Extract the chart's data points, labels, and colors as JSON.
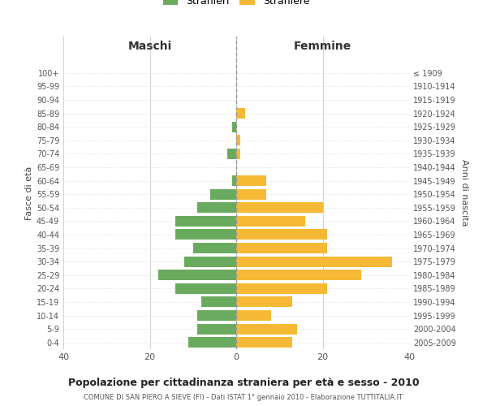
{
  "age_groups": [
    "0-4",
    "5-9",
    "10-14",
    "15-19",
    "20-24",
    "25-29",
    "30-34",
    "35-39",
    "40-44",
    "45-49",
    "50-54",
    "55-59",
    "60-64",
    "65-69",
    "70-74",
    "75-79",
    "80-84",
    "85-89",
    "90-94",
    "95-99",
    "100+"
  ],
  "birth_years": [
    "2005-2009",
    "2000-2004",
    "1995-1999",
    "1990-1994",
    "1985-1989",
    "1980-1984",
    "1975-1979",
    "1970-1974",
    "1965-1969",
    "1960-1964",
    "1955-1959",
    "1950-1954",
    "1945-1949",
    "1940-1944",
    "1935-1939",
    "1930-1934",
    "1925-1929",
    "1920-1924",
    "1915-1919",
    "1910-1914",
    "≤ 1909"
  ],
  "maschi": [
    11,
    9,
    9,
    8,
    14,
    18,
    12,
    10,
    14,
    14,
    9,
    6,
    1,
    0,
    2,
    0,
    1,
    0,
    0,
    0,
    0
  ],
  "femmine": [
    13,
    14,
    8,
    13,
    21,
    29,
    36,
    21,
    21,
    16,
    20,
    7,
    7,
    0,
    1,
    1,
    0,
    2,
    0,
    0,
    0
  ],
  "color_maschi": "#6aaa5f",
  "color_femmine": "#f5b935",
  "title": "Popolazione per cittadinanza straniera per età e sesso - 2010",
  "subtitle": "COMUNE DI SAN PIERO A SIEVE (FI) - Dati ISTAT 1° gennaio 2010 - Elaborazione TUTTITALIA.IT",
  "xlabel_left": "Maschi",
  "xlabel_right": "Femmine",
  "ylabel_left": "Fasce di età",
  "ylabel_right": "Anni di nascita",
  "legend_maschi": "Stranieri",
  "legend_femmine": "Straniere",
  "xlim": 40,
  "background_color": "#ffffff",
  "grid_color": "#d0d0d0"
}
